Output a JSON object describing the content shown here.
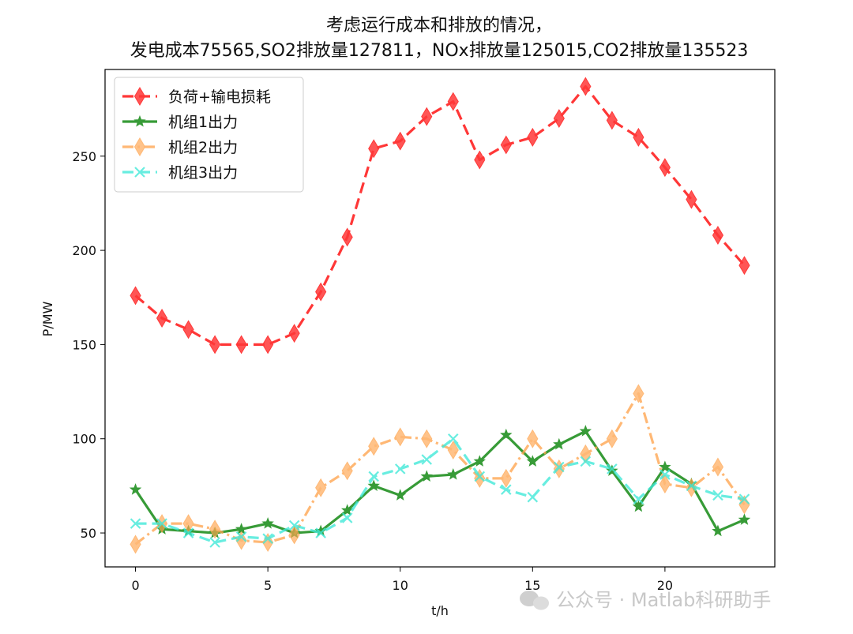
{
  "chart_data": {
    "type": "line",
    "title_line1": "考虑运行成本和排放的情况，",
    "title_line2": "发电成本75565,SO2排放量127811，NOx排放量125015,CO2排放量135523",
    "xlabel": "t/h",
    "ylabel": "P/MW",
    "xlim": [
      -1.15,
      24.15
    ],
    "ylim": [
      32,
      296
    ],
    "xticks": [
      0,
      5,
      10,
      15,
      20
    ],
    "yticks": [
      50,
      100,
      150,
      200,
      250
    ],
    "grid": false,
    "legend_position": "top-left",
    "x": [
      0,
      1,
      2,
      3,
      4,
      5,
      6,
      7,
      8,
      9,
      10,
      11,
      12,
      13,
      14,
      15,
      16,
      17,
      18,
      19,
      20,
      21,
      22,
      23
    ],
    "series": [
      {
        "name": "负荷+输电损耗",
        "color": "#ff0000",
        "linestyle": "dashed",
        "marker": "thin_diamond",
        "values": [
          176,
          164,
          158,
          150,
          150,
          150,
          156,
          178,
          207,
          254,
          258,
          271,
          279,
          248,
          256,
          260,
          270,
          287,
          269,
          260,
          244,
          227,
          208,
          192
        ]
      },
      {
        "name": "机组1出力",
        "color": "#008000",
        "linestyle": "solid",
        "marker": "star",
        "values": [
          73,
          52,
          51,
          50,
          52,
          55,
          50,
          51,
          62,
          75,
          70,
          80,
          81,
          88,
          102,
          88,
          97,
          104,
          83,
          64,
          85,
          76,
          51,
          57
        ]
      },
      {
        "name": "机组2出力",
        "color": "#ffa54f",
        "linestyle": "dashdot",
        "marker": "thin_diamond",
        "values": [
          44,
          55,
          55,
          52,
          46,
          45,
          49,
          74,
          83,
          96,
          101,
          100,
          94,
          79,
          79,
          100,
          84,
          92,
          100,
          124,
          76,
          74,
          85,
          65
        ]
      },
      {
        "name": "机组3出力",
        "color": "#3ee8d8",
        "linestyle": "dashed",
        "marker": "x",
        "values": [
          55,
          55,
          50,
          45,
          48,
          47,
          54,
          50,
          58,
          80,
          84,
          89,
          100,
          80,
          73,
          69,
          85,
          88,
          84,
          68,
          81,
          75,
          70,
          68
        ]
      }
    ]
  },
  "watermark": {
    "text": "公众号 · Matlab科研助手",
    "icon": "wechat-icon"
  }
}
